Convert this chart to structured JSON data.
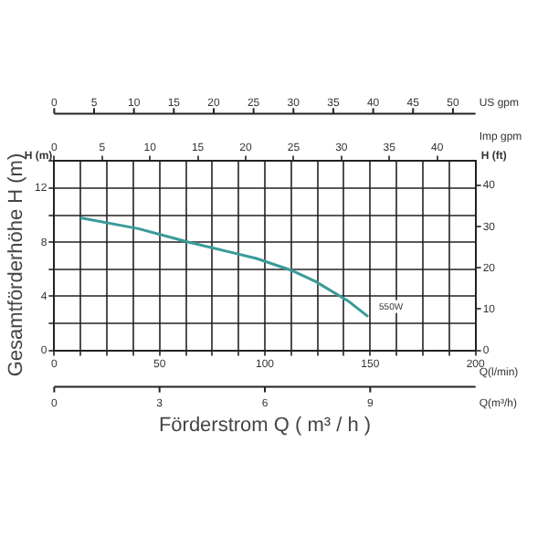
{
  "chart_data": {
    "type": "line",
    "xlabel": "Förderstrom Q ( m³ / h )",
    "ylabel": "Gesamtförderhöhe H (m)",
    "y2label": "H (ft)",
    "x2label": "Imp gpm",
    "annotations": [
      "H (m)",
      "Q(l/min)",
      "0",
      "5",
      "10",
      "15",
      "20",
      "25",
      "30",
      "35",
      "40",
      "45",
      "50",
      "US gpm",
      "0",
      "3",
      "6",
      "9",
      "Q(m³/h)"
    ],
    "x": [
      12.5,
      40,
      64,
      96,
      113,
      124,
      140,
      149
    ],
    "series": [
      {
        "name": "550W",
        "color": "#3a9a9a",
        "values": [
          9.8,
          9.0,
          8.0,
          6.8,
          5.9,
          5.1,
          3.6,
          2.5
        ]
      }
    ],
    "xlim": [
      0,
      200
    ],
    "xticks": [
      0,
      {
        "value": 12.5,
        "label": null
      },
      {
        "value": 25,
        "label": null
      },
      {
        "value": 37.5,
        "label": null
      },
      50,
      {
        "value": 62.5,
        "label": null
      },
      {
        "value": 75,
        "label": null
      },
      {
        "value": 87.5,
        "label": null
      },
      100,
      {
        "value": 112.5,
        "label": null
      },
      {
        "value": 125,
        "label": null
      },
      {
        "value": 137.5,
        "label": null
      },
      150,
      {
        "value": 162.5,
        "label": null
      },
      {
        "value": 175,
        "label": null
      },
      {
        "value": 187.5,
        "label": null
      },
      200
    ],
    "ylim": [
      0,
      14
    ],
    "yticks": [
      0,
      {
        "value": 2,
        "label": null
      },
      4,
      {
        "value": 6,
        "label": null
      },
      8,
      {
        "value": 10,
        "label": null
      },
      12,
      {
        "value": 14,
        "label": null
      }
    ],
    "y2lim": [
      0,
      45.93
    ],
    "y2ticks": [
      0,
      10,
      20,
      30,
      40
    ],
    "x2lim": [
      0,
      44
    ],
    "x2ticks": [
      0,
      5,
      10,
      15,
      20,
      25,
      30,
      35,
      40
    ],
    "grid": true,
    "legend": false,
    "marker": "none",
    "line_style": "solid"
  }
}
